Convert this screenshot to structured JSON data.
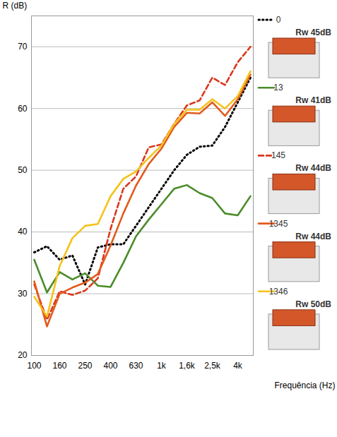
{
  "chart_data": {
    "type": "line",
    "y_label": "R (dB)",
    "x_label": "Frequência (Hz)",
    "categories": [
      "100",
      null,
      "160",
      null,
      "250",
      null,
      "400",
      null,
      "630",
      null,
      "1k",
      null,
      "1,6k",
      null,
      "2,5k",
      null,
      "4k",
      null
    ],
    "ylim": [
      20,
      75
    ],
    "yticks": [
      20,
      30,
      40,
      50,
      60,
      70
    ],
    "grid": true,
    "legend": "right",
    "series": [
      {
        "name": "0",
        "label": "Rw 45dB",
        "color": "#000000",
        "line_style": "dotted",
        "values": [
          36.7,
          37.7,
          35.5,
          36.2,
          31.5,
          37.5,
          38.0,
          38.0,
          41.0,
          44.0,
          47.0,
          50.0,
          52.5,
          53.8,
          54.0,
          57.0,
          61.0,
          65.0
        ]
      },
      {
        "name": "13",
        "label": "Rw 41dB",
        "color": "#4a8c2a",
        "line_style": "solid",
        "values": [
          35.5,
          30.2,
          33.5,
          32.3,
          33.3,
          31.3,
          31.1,
          35.0,
          39.3,
          42.0,
          44.5,
          47.0,
          47.6,
          46.3,
          45.5,
          43.0,
          42.7,
          45.8
        ]
      },
      {
        "name": "145",
        "label": "Rw 44dB",
        "color": "#d9381e",
        "line_style": "dashed",
        "values": [
          31.5,
          25.8,
          30.4,
          29.8,
          30.5,
          32.5,
          40.5,
          47.0,
          49.0,
          53.7,
          54.2,
          57.5,
          60.5,
          61.3,
          65.0,
          63.8,
          67.5,
          70.0
        ]
      },
      {
        "name": "1345",
        "label": "Rw 44dB",
        "color": "#e25a1c",
        "line_style": "solid",
        "values": [
          32.0,
          24.7,
          30.0,
          31.0,
          31.8,
          33.2,
          37.8,
          43.0,
          47.5,
          51.0,
          53.5,
          57.0,
          59.3,
          59.2,
          61.0,
          58.8,
          61.5,
          65.5
        ]
      },
      {
        "name": "1346",
        "label": "Rw 50dB",
        "color": "#f5c21b",
        "line_style": "solid",
        "values": [
          29.5,
          26.3,
          34.5,
          39.0,
          41.0,
          41.3,
          45.8,
          48.6,
          49.8,
          52.0,
          54.0,
          57.5,
          59.8,
          59.8,
          61.5,
          60.0,
          62.0,
          66.0
        ]
      }
    ]
  }
}
